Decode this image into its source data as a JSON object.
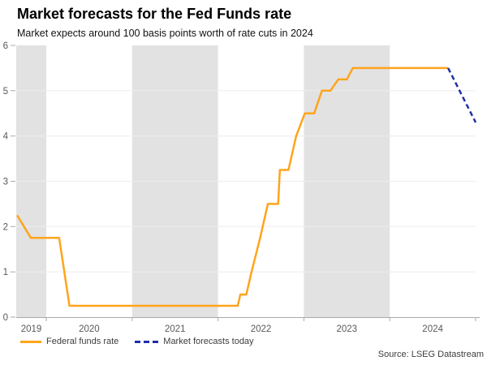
{
  "header": {
    "title": "Market forecasts for the Fed Funds rate",
    "subtitle": "Market expects around 100 basis points worth of rate cuts in 2024"
  },
  "legend": {
    "items": [
      {
        "label": "Federal funds rate",
        "style": "solid",
        "color": "#FFA41C"
      },
      {
        "label": "Market forecasts today",
        "style": "dashed",
        "color": "#1F2FA8"
      }
    ]
  },
  "source": "Source: LSEG Datastream",
  "chart_data": {
    "type": "line",
    "title": "Market forecasts for the Fed Funds rate",
    "subtitle": "Market expects around 100 basis points worth of rate cuts in 2024",
    "x_domain": [
      2019.65,
      2025.0
    ],
    "y_domain": [
      0,
      6
    ],
    "y_ticks": [
      0,
      1,
      2,
      3,
      4,
      5,
      6
    ],
    "gridlines": [
      1,
      2,
      3,
      4,
      5
    ],
    "x_year_labels": [
      "2019",
      "2020",
      "2021",
      "2022",
      "2023",
      "2024"
    ],
    "x_boundary_ticks": [
      2020,
      2021,
      2022,
      2023,
      2024,
      2025
    ],
    "shaded_bands": [
      [
        2019.65,
        2020.0
      ],
      [
        2021.0,
        2022.0
      ],
      [
        2023.0,
        2024.0
      ]
    ],
    "band_color": "#E2E2E2",
    "grid_color": "#EDEDED",
    "axis_color": "#A9A9A9",
    "tick_label_color": "#595959",
    "legend_position": "bottom-left",
    "series": [
      {
        "name": "Federal funds rate",
        "color": "#FFA41C",
        "dash": null,
        "points": [
          [
            2019.66,
            2.25
          ],
          [
            2019.82,
            1.75
          ],
          [
            2020.15,
            1.75
          ],
          [
            2020.27,
            0.25
          ],
          [
            2022.23,
            0.25
          ],
          [
            2022.26,
            0.5
          ],
          [
            2022.33,
            0.5
          ],
          [
            2022.39,
            1.0
          ],
          [
            2022.49,
            1.75
          ],
          [
            2022.58,
            2.5
          ],
          [
            2022.7,
            2.5
          ],
          [
            2022.72,
            3.25
          ],
          [
            2022.82,
            3.25
          ],
          [
            2022.91,
            4.0
          ],
          [
            2023.01,
            4.5
          ],
          [
            2023.12,
            4.5
          ],
          [
            2023.21,
            5.0
          ],
          [
            2023.31,
            5.0
          ],
          [
            2023.4,
            5.25
          ],
          [
            2023.5,
            5.25
          ],
          [
            2023.57,
            5.5
          ],
          [
            2024.68,
            5.5
          ]
        ]
      },
      {
        "name": "Market forecasts today",
        "color": "#1F2FA8",
        "dash": [
          6,
          4
        ],
        "points": [
          [
            2024.68,
            5.5
          ],
          [
            2025.0,
            4.3
          ]
        ]
      }
    ]
  }
}
